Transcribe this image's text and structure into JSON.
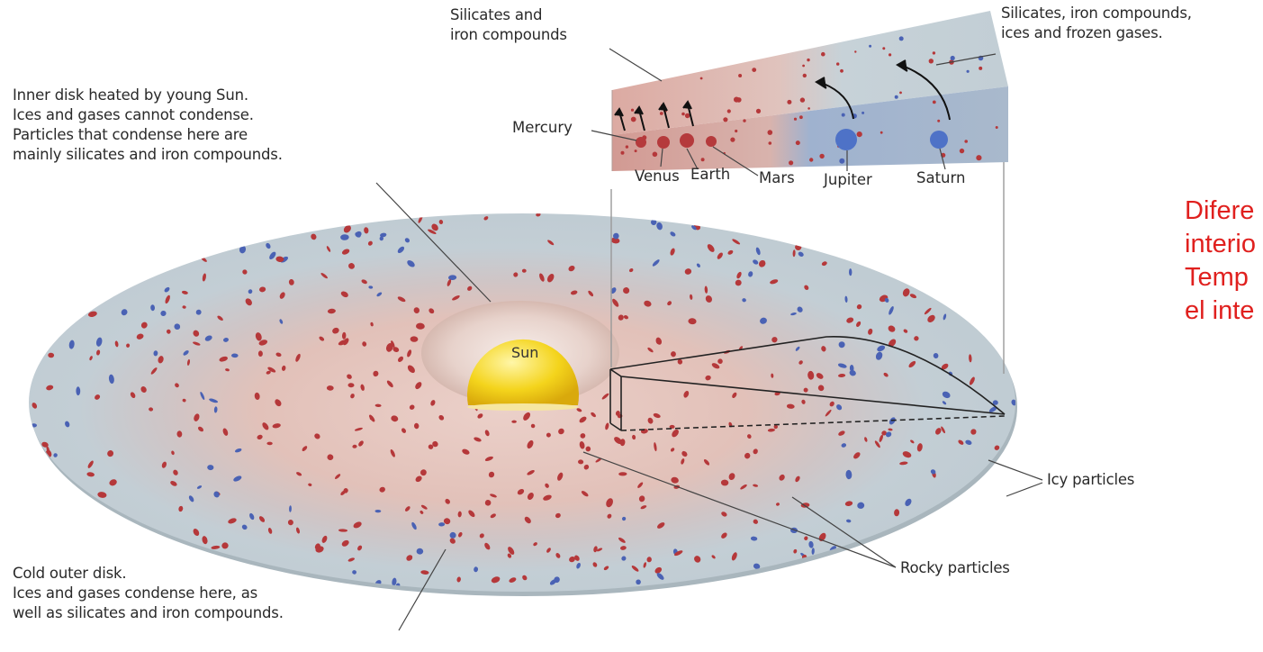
{
  "labels": {
    "inner_disk": "Inner disk heated by young Sun.\nIces and gases cannot condense.\nParticles that condense here are\nmainly silicates and iron compounds.",
    "silicates_iron": "Silicates and\niron compounds",
    "silicates_ices": "Silicates, iron compounds,\nices and frozen gases.",
    "cold_outer": "Cold outer disk.\nIces and gases condense here, as\nwell as silicates and iron compounds.",
    "icy_particles": "Icy particles",
    "rocky_particles": "Rocky particles",
    "sun": "Sun"
  },
  "planets": {
    "mercury": "Mercury",
    "venus": "Venus",
    "earth": "Earth",
    "mars": "Mars",
    "jupiter": "Jupiter",
    "saturn": "Saturn"
  },
  "overlay_text": "Difere\ninterio\nTemp\nel inte",
  "colors": {
    "rocky": "#b5383a",
    "icy": "#4a62b4",
    "inner_disk": "#e4c3bc",
    "outer_disk": "#c6d0d6",
    "sun": "#f2d21c",
    "overlay_text": "#e0201e"
  }
}
